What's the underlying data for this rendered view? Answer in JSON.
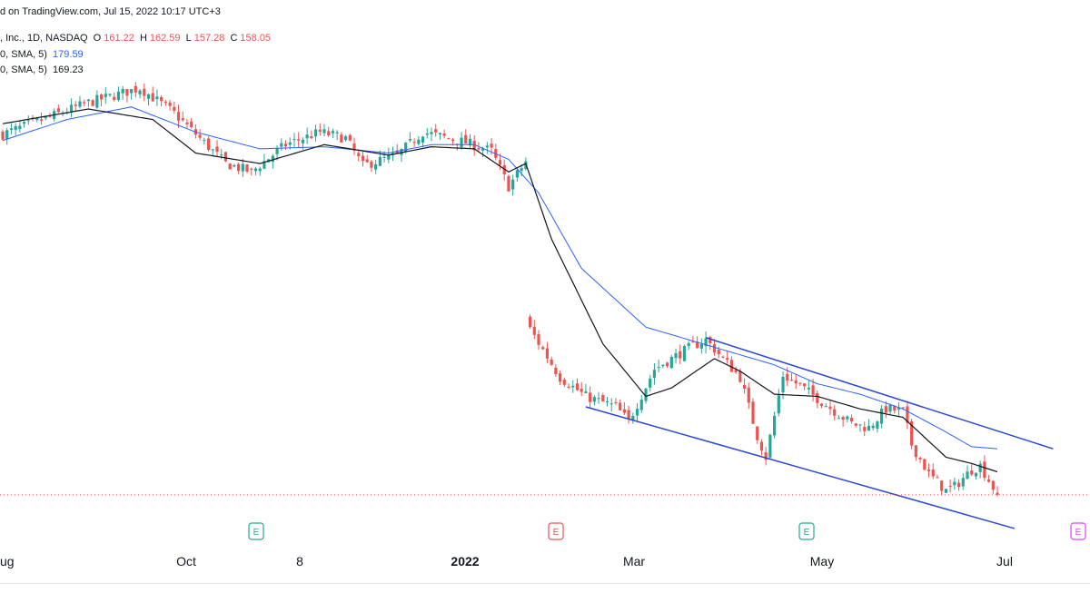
{
  "header": {
    "published": "d on TradingView.com, Jul 15, 2022 10:17 UTC+3",
    "symbol": ", Inc., 1D, NASDAQ",
    "o_label": "O",
    "o_value": "161.22",
    "h_label": "H",
    "h_value": "162.59",
    "l_label": "L",
    "l_value": "157.28",
    "c_label": "C",
    "c_value": "158.05",
    "sma1_label": "0, SMA, 5)",
    "sma1_value": "179.59",
    "sma2_label": "0, SMA, 5)",
    "sma2_value": "169.23"
  },
  "colors": {
    "up": "#26a69a",
    "down": "#ef5350",
    "sma_slow": "#2962ff",
    "sma_fast": "#131722",
    "channel": "#2948d6",
    "price_line": "#ef5350",
    "earnings_green": "#26a69a",
    "earnings_red": "#ef5350",
    "earnings_purple": "#e040fb"
  },
  "chart_data": {
    "type": "candlestick",
    "title": "",
    "x_ticks": [
      {
        "label": "ug",
        "bold": false
      },
      {
        "label": "Oct",
        "bold": false
      },
      {
        "label": "8",
        "bold": false
      },
      {
        "label": "2022",
        "bold": true
      },
      {
        "label": "Mar",
        "bold": false
      },
      {
        "label": "May",
        "bold": false
      },
      {
        "label": "Jul",
        "bold": false
      }
    ],
    "earnings_markers": [
      {
        "label": "E",
        "color": "earnings_green"
      },
      {
        "label": "E",
        "color": "earnings_red"
      },
      {
        "label": "E",
        "color": "earnings_green"
      },
      {
        "label": "E",
        "color": "earnings_purple"
      }
    ],
    "last_price": 158.05,
    "price_anchors": [
      {
        "idx": 0,
        "price": 330
      },
      {
        "idx": 20,
        "price": 345
      },
      {
        "idx": 32,
        "price": 352
      },
      {
        "idx": 40,
        "price": 340
      },
      {
        "idx": 52,
        "price": 316
      },
      {
        "idx": 58,
        "price": 312
      },
      {
        "idx": 66,
        "price": 325
      },
      {
        "idx": 74,
        "price": 331
      },
      {
        "idx": 80,
        "price": 328
      },
      {
        "idx": 84,
        "price": 315
      },
      {
        "idx": 92,
        "price": 320
      },
      {
        "idx": 98,
        "price": 331
      },
      {
        "idx": 108,
        "price": 326
      },
      {
        "idx": 114,
        "price": 322
      },
      {
        "idx": 118,
        "price": 305
      },
      {
        "idx": 122,
        "price": 317
      },
      {
        "idx": 123,
        "price": 237
      },
      {
        "idx": 130,
        "price": 214
      },
      {
        "idx": 136,
        "price": 205
      },
      {
        "idx": 143,
        "price": 200
      },
      {
        "idx": 146,
        "price": 193
      },
      {
        "idx": 152,
        "price": 218
      },
      {
        "idx": 160,
        "price": 228
      },
      {
        "idx": 164,
        "price": 232
      },
      {
        "idx": 172,
        "price": 214
      },
      {
        "idx": 176,
        "price": 186
      },
      {
        "idx": 178,
        "price": 176
      },
      {
        "idx": 182,
        "price": 215
      },
      {
        "idx": 186,
        "price": 210
      },
      {
        "idx": 192,
        "price": 201
      },
      {
        "idx": 198,
        "price": 192
      },
      {
        "idx": 202,
        "price": 190
      },
      {
        "idx": 206,
        "price": 199
      },
      {
        "idx": 210,
        "price": 198
      },
      {
        "idx": 212,
        "price": 182
      },
      {
        "idx": 216,
        "price": 168
      },
      {
        "idx": 220,
        "price": 160
      },
      {
        "idx": 222,
        "price": 162
      },
      {
        "idx": 226,
        "price": 170
      },
      {
        "idx": 228,
        "price": 172
      },
      {
        "idx": 232,
        "price": 158
      }
    ],
    "sma_fast_anchors": [
      {
        "idx": 0,
        "price": 335
      },
      {
        "idx": 20,
        "price": 342
      },
      {
        "idx": 35,
        "price": 337
      },
      {
        "idx": 45,
        "price": 321
      },
      {
        "idx": 60,
        "price": 316
      },
      {
        "idx": 75,
        "price": 325
      },
      {
        "idx": 90,
        "price": 320
      },
      {
        "idx": 100,
        "price": 324
      },
      {
        "idx": 110,
        "price": 323
      },
      {
        "idx": 118,
        "price": 312
      },
      {
        "idx": 122,
        "price": 316
      },
      {
        "idx": 128,
        "price": 280
      },
      {
        "idx": 140,
        "price": 230
      },
      {
        "idx": 150,
        "price": 205
      },
      {
        "idx": 156,
        "price": 209
      },
      {
        "idx": 166,
        "price": 223
      },
      {
        "idx": 172,
        "price": 217
      },
      {
        "idx": 180,
        "price": 206
      },
      {
        "idx": 190,
        "price": 205
      },
      {
        "idx": 200,
        "price": 199
      },
      {
        "idx": 210,
        "price": 195
      },
      {
        "idx": 220,
        "price": 176
      },
      {
        "idx": 226,
        "price": 173
      },
      {
        "idx": 232,
        "price": 169
      }
    ],
    "sma_slow_anchors": [
      {
        "idx": 0,
        "price": 327
      },
      {
        "idx": 15,
        "price": 337
      },
      {
        "idx": 30,
        "price": 343
      },
      {
        "idx": 45,
        "price": 331
      },
      {
        "idx": 60,
        "price": 323
      },
      {
        "idx": 75,
        "price": 324
      },
      {
        "idx": 90,
        "price": 321
      },
      {
        "idx": 100,
        "price": 325
      },
      {
        "idx": 110,
        "price": 325
      },
      {
        "idx": 118,
        "price": 318
      },
      {
        "idx": 125,
        "price": 302
      },
      {
        "idx": 135,
        "price": 266
      },
      {
        "idx": 150,
        "price": 238
      },
      {
        "idx": 165,
        "price": 229
      },
      {
        "idx": 180,
        "price": 220
      },
      {
        "idx": 190,
        "price": 211
      },
      {
        "idx": 200,
        "price": 206
      },
      {
        "idx": 210,
        "price": 199
      },
      {
        "idx": 220,
        "price": 188
      },
      {
        "idx": 226,
        "price": 181
      },
      {
        "idx": 232,
        "price": 180
      }
    ],
    "trendlines": [
      {
        "name": "upper",
        "start": {
          "idx": 164,
          "price": 233
        },
        "end": {
          "idx": 245,
          "price": 180
        }
      },
      {
        "name": "lower",
        "start": {
          "idx": 136,
          "price": 200
        },
        "end": {
          "idx": 236,
          "price": 142
        }
      }
    ]
  }
}
